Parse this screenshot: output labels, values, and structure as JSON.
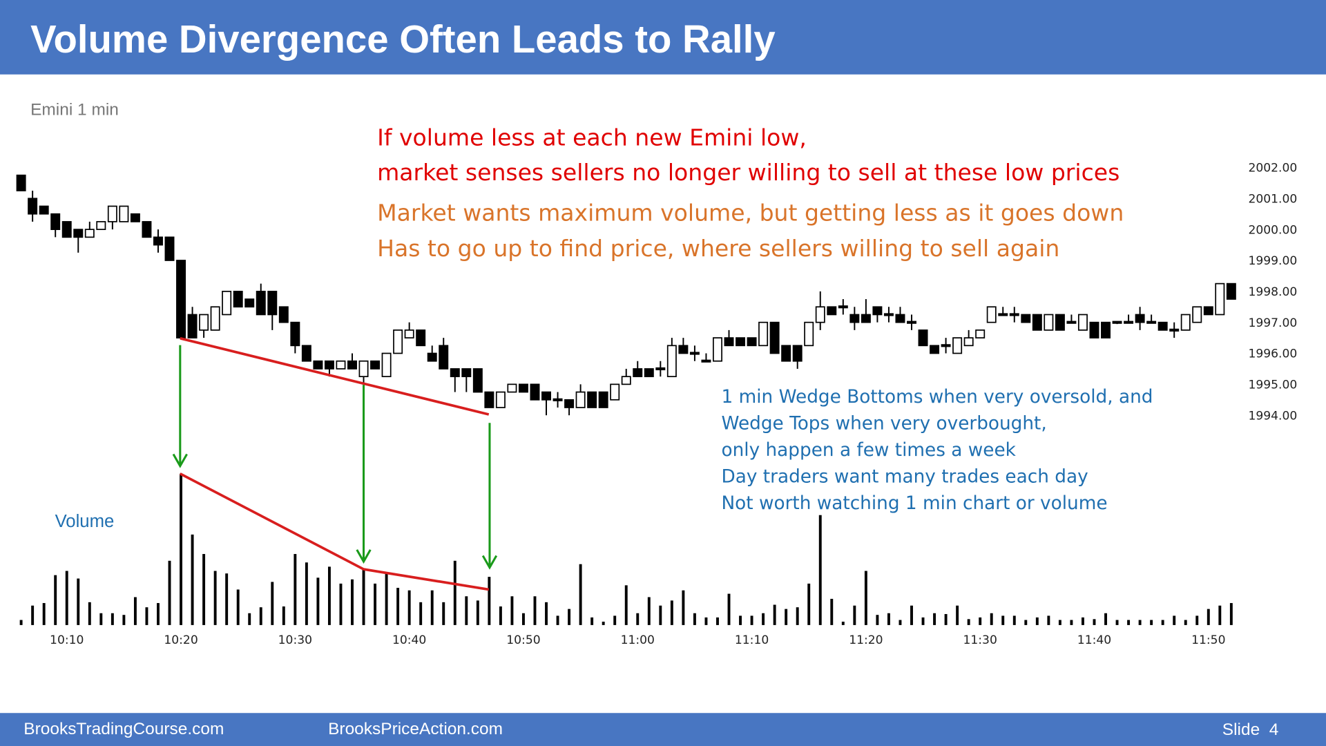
{
  "header": {
    "title": "Volume Divergence Often Leads to Rally"
  },
  "footer": {
    "left": "BrooksTradingCourse.com",
    "center": "BrooksPriceAction.com",
    "slide": "Slide  4"
  },
  "chart_data": {
    "type": "candlestick",
    "subtitle": "Emini 1 min",
    "volume_label": "Volume",
    "up_color": "#ffffff",
    "down_color": "#000000",
    "volume_color": "#000000",
    "annotations": [
      {
        "color": "#e00000",
        "lines": [
          "If volume less at each new Emini low,",
          "market senses sellers no longer willing to sell at these low prices"
        ]
      },
      {
        "color": "#d9742a",
        "lines": [
          "Market wants maximum volume, but getting less as it goes down",
          "Has to go up to find price, where sellers willing to sell again"
        ]
      },
      {
        "color": "#1f6fb0",
        "lines": [
          "1 min Wedge Bottoms when very oversold, and",
          "Wedge Tops when very overbought,",
          "only happen a few times a week",
          "Day traders want many trades each day",
          "Not worth watching 1 min chart or volume"
        ]
      }
    ],
    "categories": [
      null,
      null,
      null,
      null,
      "10:10",
      null,
      null,
      null,
      null,
      null,
      null,
      null,
      null,
      null,
      "10:20",
      null,
      null,
      null,
      null,
      null,
      null,
      null,
      null,
      null,
      "10:30",
      null,
      null,
      null,
      null,
      null,
      null,
      null,
      null,
      null,
      "10:40",
      null,
      null,
      null,
      null,
      null,
      null,
      null,
      null,
      null,
      "10:50",
      null,
      null,
      null,
      null,
      null,
      null,
      null,
      null,
      null,
      "11:00",
      null,
      null,
      null,
      null,
      null,
      null,
      null,
      null,
      null,
      "11:10",
      null,
      null,
      null,
      null,
      null,
      null,
      null,
      null,
      null,
      "11:20",
      null,
      null,
      null,
      null,
      null,
      null,
      null,
      null,
      null,
      "11:30",
      null,
      null,
      null,
      null,
      null,
      null,
      null,
      null,
      null,
      "11:40",
      null,
      null,
      null,
      null,
      null,
      null,
      null,
      null,
      null,
      "11:50",
      null,
      null
    ],
    "open": [
      2001.75,
      2001.0,
      2000.75,
      2000.5,
      2000.25,
      2000.0,
      1999.75,
      2000.0,
      2000.25,
      2000.25,
      2000.5,
      2000.25,
      1999.75,
      1999.75,
      1999.0,
      1997.25,
      1996.75,
      1996.75,
      1997.25,
      1998.0,
      1997.75,
      1998.0,
      1998.0,
      1997.5,
      1997.0,
      1996.25,
      1995.75,
      1995.75,
      1995.5,
      1995.75,
      1995.25,
      1995.75,
      1995.25,
      1996.0,
      1996.5,
      1996.75,
      1996.0,
      1996.25,
      1995.5,
      1995.5,
      1995.5,
      1994.75,
      1994.25,
      1994.75,
      1995.0,
      1995.0,
      1994.75,
      1994.5,
      1994.5,
      1994.25,
      1994.75,
      1994.75,
      1994.5,
      1995.0,
      1995.5,
      1995.5,
      1995.5,
      1995.25,
      1996.25,
      1996.0,
      1995.75,
      1995.75,
      1996.5,
      1996.5,
      1996.5,
      1996.25,
      1997.0,
      1996.25,
      1996.25,
      1996.25,
      1997.0,
      1997.5,
      1997.5,
      1997.25,
      1997.25,
      1997.5,
      1997.25,
      1997.25,
      1997.0,
      1996.75,
      1996.25,
      1996.25,
      1996.0,
      1996.25,
      1996.5,
      1997.0,
      1997.25,
      1997.25,
      1997.25,
      1997.25,
      1996.75,
      1997.25,
      1997.0,
      1996.75,
      1997.0,
      1997.0,
      1997.0,
      1997.0,
      1997.25,
      1997.0,
      1997.0,
      1996.75,
      1996.75,
      1997.0,
      1997.5,
      1997.25,
      1998.25
    ],
    "high": [
      2001.75,
      2001.25,
      2000.75,
      2000.5,
      2000.25,
      2000.0,
      2000.25,
      2000.25,
      2000.75,
      2000.75,
      2000.5,
      2000.25,
      2000.0,
      1999.75,
      1999.0,
      1997.5,
      1997.25,
      1997.5,
      1998.0,
      1998.0,
      1997.75,
      1998.25,
      1998.0,
      1997.5,
      1997.0,
      1996.25,
      1995.75,
      1995.75,
      1995.75,
      1996.0,
      1995.75,
      1995.75,
      1996.0,
      1996.75,
      1997.0,
      1996.75,
      1996.25,
      1996.5,
      1995.5,
      1995.5,
      1995.5,
      1994.75,
      1994.75,
      1995.0,
      1995.0,
      1995.0,
      1994.75,
      1994.75,
      1994.5,
      1995.0,
      1994.75,
      1994.75,
      1995.0,
      1995.5,
      1995.75,
      1995.5,
      1995.75,
      1996.5,
      1996.5,
      1996.25,
      1996.0,
      1996.5,
      1996.75,
      1996.5,
      1996.5,
      1997.0,
      1997.0,
      1996.25,
      1996.25,
      1997.0,
      1998.0,
      1997.5,
      1997.75,
      1997.5,
      1997.75,
      1997.5,
      1997.5,
      1997.5,
      1997.25,
      1996.75,
      1996.25,
      1996.5,
      1996.5,
      1996.75,
      1996.75,
      1997.5,
      1997.5,
      1997.5,
      1997.25,
      1997.25,
      1997.25,
      1997.25,
      1997.25,
      1997.25,
      1997.0,
      1997.0,
      1997.0,
      1997.25,
      1997.5,
      1997.25,
      1997.0,
      1997.0,
      1997.25,
      1997.5,
      1997.5,
      1998.25,
      1998.25
    ],
    "low": [
      2001.25,
      2000.25,
      2000.5,
      1999.75,
      1999.75,
      1999.25,
      1999.75,
      2000.0,
      2000.0,
      2000.25,
      2000.25,
      1999.75,
      1999.25,
      1999.0,
      1996.5,
      1996.5,
      1996.5,
      1996.75,
      1997.25,
      1997.5,
      1997.5,
      1997.25,
      1996.75,
      1997.0,
      1996.0,
      1995.75,
      1995.5,
      1995.25,
      1995.5,
      1995.5,
      1995.0,
      1995.5,
      1995.25,
      1996.0,
      1996.5,
      1996.25,
      1995.75,
      1995.5,
      1994.75,
      1994.75,
      1994.75,
      1994.25,
      1994.25,
      1994.75,
      1994.75,
      1994.5,
      1994.0,
      1994.25,
      1994.0,
      1994.25,
      1994.25,
      1994.25,
      1994.5,
      1995.0,
      1995.25,
      1995.25,
      1995.25,
      1995.25,
      1996.0,
      1995.75,
      1995.75,
      1995.75,
      1996.25,
      1996.25,
      1996.25,
      1996.25,
      1996.0,
      1995.75,
      1995.5,
      1996.25,
      1996.75,
      1997.25,
      1997.25,
      1996.75,
      1997.0,
      1997.0,
      1997.0,
      1997.0,
      1996.75,
      1996.25,
      1996.0,
      1996.0,
      1996.0,
      1996.25,
      1996.5,
      1997.0,
      1997.25,
      1997.0,
      1997.0,
      1996.75,
      1996.75,
      1996.75,
      1997.0,
      1996.75,
      1996.5,
      1996.5,
      1997.0,
      1997.0,
      1996.75,
      1997.0,
      1996.75,
      1996.5,
      1996.75,
      1997.0,
      1997.25,
      1997.25,
      1997.75
    ],
    "close": [
      2001.25,
      2000.5,
      2000.5,
      2000.0,
      1999.75,
      1999.75,
      2000.0,
      2000.25,
      2000.75,
      2000.75,
      2000.25,
      1999.75,
      1999.5,
      1999.0,
      1996.5,
      1996.5,
      1997.25,
      1997.5,
      1998.0,
      1997.5,
      1997.5,
      1997.25,
      1997.25,
      1997.0,
      1996.25,
      1995.75,
      1995.5,
      1995.5,
      1995.75,
      1995.5,
      1995.75,
      1995.5,
      1996.0,
      1996.75,
      1996.75,
      1996.25,
      1995.75,
      1995.5,
      1995.25,
      1995.25,
      1994.75,
      1994.25,
      1994.75,
      1995.0,
      1994.75,
      1994.5,
      1994.5,
      1994.5,
      1994.25,
      1994.75,
      1994.25,
      1994.25,
      1995.0,
      1995.25,
      1995.25,
      1995.25,
      1995.5,
      1996.25,
      1996.0,
      1996.0,
      1995.75,
      1996.5,
      1996.25,
      1996.25,
      1996.25,
      1997.0,
      1996.0,
      1995.75,
      1995.75,
      1997.0,
      1997.5,
      1997.25,
      1997.5,
      1997.0,
      1997.0,
      1997.25,
      1997.25,
      1997.0,
      1997.0,
      1996.25,
      1996.0,
      1996.25,
      1996.5,
      1996.5,
      1996.75,
      1997.5,
      1997.25,
      1997.25,
      1997.0,
      1996.75,
      1997.25,
      1996.75,
      1997.0,
      1997.25,
      1996.5,
      1996.5,
      1997.0,
      1997.0,
      1997.0,
      1997.0,
      1996.75,
      1996.75,
      1997.25,
      1997.5,
      1997.25,
      1998.25,
      1997.75
    ],
    "volume": [
      6,
      23,
      26,
      59,
      64,
      55,
      27,
      14,
      14,
      12,
      33,
      21,
      26,
      76,
      179,
      107,
      84,
      64,
      61,
      42,
      14,
      21,
      51,
      22,
      84,
      74,
      56,
      69,
      49,
      54,
      66,
      49,
      61,
      44,
      41,
      27,
      41,
      27,
      76,
      34,
      29,
      57,
      22,
      34,
      14,
      34,
      27,
      11,
      19,
      72,
      9,
      4,
      11,
      47,
      14,
      33,
      23,
      29,
      41,
      14,
      9,
      9,
      37,
      11,
      11,
      14,
      24,
      19,
      21,
      49,
      130,
      31,
      4,
      23,
      64,
      12,
      14,
      6,
      23,
      9,
      14,
      13,
      23,
      7,
      9,
      14,
      11,
      11,
      6,
      9,
      11,
      6,
      6,
      9,
      7,
      14,
      6,
      6,
      6,
      6,
      6,
      11,
      6,
      11,
      19,
      23,
      26
    ],
    "ylim": [
      1993.5,
      2002.25
    ],
    "yticks": [
      {
        "value": 2002,
        "label": "2002.00"
      },
      {
        "value": 2001,
        "label": "2001.00"
      },
      {
        "value": 2000,
        "label": "2000.00"
      },
      {
        "value": 1999,
        "label": "1999.00"
      },
      {
        "value": 1998,
        "label": "1998.00"
      },
      {
        "value": 1997,
        "label": "1997.00"
      },
      {
        "value": 1996,
        "label": "1996.00"
      },
      {
        "value": 1995,
        "label": "1995.00"
      },
      {
        "value": 1994,
        "label": "1994.00"
      }
    ]
  }
}
